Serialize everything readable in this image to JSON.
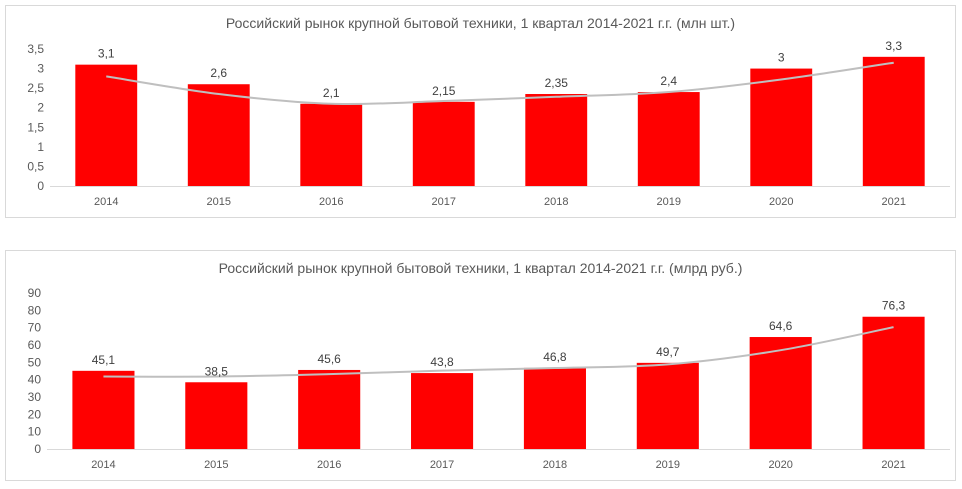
{
  "colors": {
    "bar": "#ff0000",
    "trend": "#bfbfbf",
    "axis": "#d9d9d9",
    "text": "#595959",
    "label": "#404040"
  },
  "chart_data": [
    {
      "type": "bar",
      "title": "Российский рынок крупной бытовой техники, 1 квартал 2014-2021 г.г. (млн шт.)",
      "categories": [
        "2014",
        "2015",
        "2016",
        "2017",
        "2018",
        "2019",
        "2020",
        "2021"
      ],
      "values": [
        3.1,
        2.6,
        2.1,
        2.15,
        2.35,
        2.4,
        3,
        3.3
      ],
      "data_labels": [
        "3,1",
        "2,6",
        "2,1",
        "2,15",
        "2,35",
        "2,4",
        "3",
        "3,3"
      ],
      "trendline": [
        2.8,
        2.35,
        2.1,
        2.17,
        2.28,
        2.4,
        2.72,
        3.15
      ],
      "ylim": [
        0,
        3.5
      ],
      "yticks": [
        "0",
        "0,5",
        "1",
        "1,5",
        "2",
        "2,5",
        "3",
        "3,5"
      ],
      "grid": false,
      "legend": "none"
    },
    {
      "type": "bar",
      "title": "Российский рынок крупной бытовой техники, 1 квартал 2014-2021 г.г. (млрд руб.)",
      "categories": [
        "2014",
        "2015",
        "2016",
        "2017",
        "2018",
        "2019",
        "2020",
        "2021"
      ],
      "values": [
        45.1,
        38.5,
        45.6,
        43.8,
        46.8,
        49.7,
        64.6,
        76.3
      ],
      "data_labels": [
        "45,1",
        "38,5",
        "45,6",
        "43,8",
        "46,8",
        "49,7",
        "64,6",
        "76,3"
      ],
      "trendline": [
        41.8,
        41.8,
        43.2,
        45.2,
        46.7,
        48.8,
        57.0,
        70.3
      ],
      "ylim": [
        0,
        90
      ],
      "yticks": [
        "0",
        "10",
        "20",
        "30",
        "40",
        "50",
        "60",
        "70",
        "80",
        "90"
      ],
      "grid": false,
      "legend": "none"
    }
  ]
}
